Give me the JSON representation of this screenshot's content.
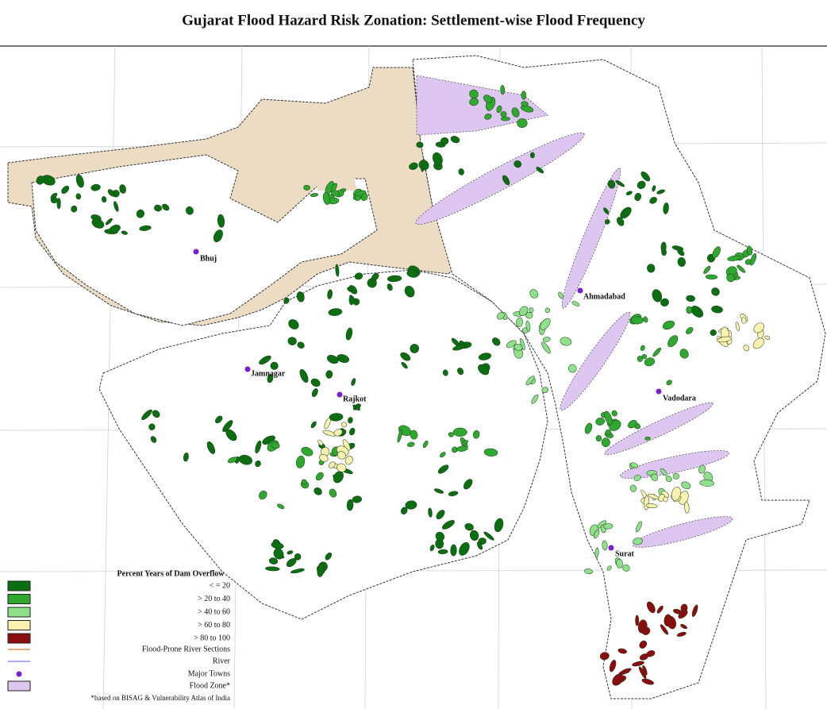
{
  "title": "Gujarat Flood Hazard Risk Zonation: Settlement-wise Flood Frequency",
  "towns": [
    {
      "label": "Bhuj"
    },
    {
      "label": "Ahmadabad"
    },
    {
      "label": "Jamnagar"
    },
    {
      "label": "Rajkot"
    },
    {
      "label": "Vadodara"
    },
    {
      "label": "Surat"
    }
  ],
  "legend": {
    "title": "Percent Years of Dam Overflow",
    "items": [
      {
        "label": "< = 20",
        "color": "#0b6e10"
      },
      {
        "label": "> 20 to 40",
        "color": "#2fa82f"
      },
      {
        "label": "> 40 to 60",
        "color": "#8fe08a"
      },
      {
        "label": "> 60 to 80",
        "color": "#fbf2b0"
      },
      {
        "label": "> 80 to 100",
        "color": "#8b0d0d"
      }
    ],
    "symbols": [
      {
        "label": "Flood-Prone River Sections"
      },
      {
        "label": "River"
      },
      {
        "label": "Major Towns"
      },
      {
        "label": "Flood Zone*"
      }
    ],
    "note": "*based on BISAG & Vulnerability Atlas of India"
  }
}
